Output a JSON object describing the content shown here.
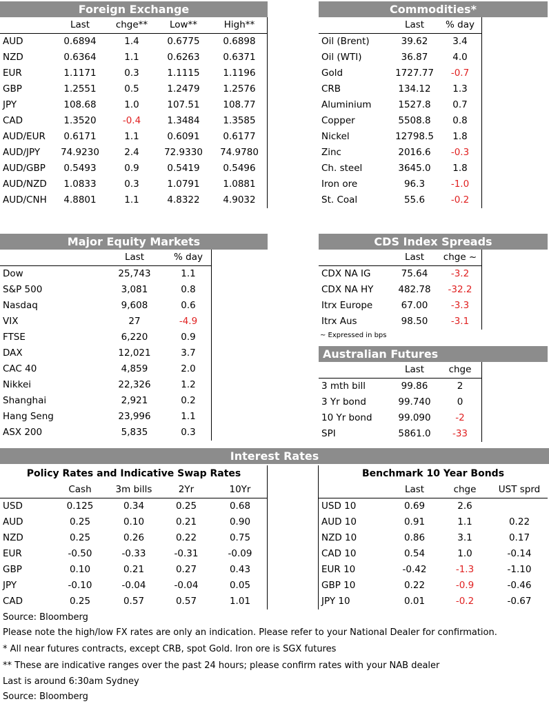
{
  "fx": {
    "title": "Foreign Exchange",
    "headers": [
      "",
      "Last",
      "chge**",
      "Low**",
      "High**"
    ],
    "rows": [
      [
        "AUD",
        "0.6894",
        "1.4",
        "0.6775",
        "0.6898"
      ],
      [
        "NZD",
        "0.6364",
        "1.1",
        "0.6263",
        "0.6371"
      ],
      [
        "EUR",
        "1.1171",
        "0.3",
        "1.1115",
        "1.1196"
      ],
      [
        "GBP",
        "1.2551",
        "0.5",
        "1.2479",
        "1.2576"
      ],
      [
        "JPY",
        "108.68",
        "1.0",
        "107.51",
        "108.77"
      ],
      [
        "CAD",
        "1.3520",
        "-0.4",
        "1.3484",
        "1.3585"
      ],
      [
        "AUD/EUR",
        "0.6171",
        "1.1",
        "0.6091",
        "0.6177"
      ],
      [
        "AUD/JPY",
        "74.9230",
        "2.4",
        "72.9330",
        "74.9780"
      ],
      [
        "AUD/GBP",
        "0.5493",
        "0.9",
        "0.5419",
        "0.5496"
      ],
      [
        "AUD/NZD",
        "1.0833",
        "0.3",
        "1.0791",
        "1.0881"
      ],
      [
        "AUD/CNH",
        "4.8801",
        "1.1",
        "4.8322",
        "4.9032"
      ]
    ]
  },
  "commodities": {
    "title": "Commodities*",
    "headers": [
      "",
      "Last",
      "% day"
    ],
    "rows": [
      [
        "Oil (Brent)",
        "39.62",
        "3.4"
      ],
      [
        "Oil (WTI)",
        "36.87",
        "4.0"
      ],
      [
        "Gold",
        "1727.77",
        "-0.7"
      ],
      [
        "CRB",
        "134.12",
        "1.3"
      ],
      [
        "Aluminium",
        "1527.8",
        "0.7"
      ],
      [
        "Copper",
        "5508.8",
        "0.8"
      ],
      [
        "Nickel",
        "12798.5",
        "1.8"
      ],
      [
        "Zinc",
        "2016.6",
        "-0.3"
      ],
      [
        "Ch. steel",
        "3645.0",
        "1.8"
      ],
      [
        "Iron ore",
        "96.3",
        "-1.0"
      ],
      [
        "St. Coal",
        "55.6",
        "-0.2"
      ]
    ]
  },
  "equities": {
    "title": "Major Equity Markets",
    "headers": [
      "",
      "Last",
      "% day"
    ],
    "rows": [
      [
        "Dow",
        "25,743",
        "1.1"
      ],
      [
        "S&P 500",
        "3,081",
        "0.8"
      ],
      [
        "Nasdaq",
        "9,608",
        "0.6"
      ],
      [
        "VIX",
        "27",
        "-4.9"
      ],
      [
        "FTSE",
        "6,220",
        "0.9"
      ],
      [
        "DAX",
        "12,021",
        "3.7"
      ],
      [
        "CAC 40",
        "4,859",
        "2.0"
      ],
      [
        "Nikkei",
        "22,326",
        "1.2"
      ],
      [
        "Shanghai",
        "2,921",
        "0.2"
      ],
      [
        "Hang Seng",
        "23,996",
        "1.1"
      ],
      [
        "ASX 200",
        "5,835",
        "0.3"
      ]
    ]
  },
  "cds": {
    "title": "CDS Index Spreads",
    "headers": [
      "",
      "Last",
      "chge ~"
    ],
    "rows": [
      [
        "CDX NA IG",
        "75.64",
        "-3.2"
      ],
      [
        "CDX NA HY",
        "482.78",
        "-32.2"
      ],
      [
        "Itrx Europe",
        "67.00",
        "-3.3"
      ],
      [
        "Itrx Aus",
        "98.50",
        "-3.1"
      ]
    ],
    "footnote": "~ Expressed in bps"
  },
  "futures": {
    "title": "Australian Futures",
    "headers": [
      "",
      "Last",
      "chge"
    ],
    "rows": [
      [
        "3 mth bill",
        "99.86",
        "2"
      ],
      [
        "3 Yr bond",
        "99.740",
        "0"
      ],
      [
        "10 Yr bond",
        "99.090",
        "-2"
      ],
      [
        "SPI",
        "5861.0",
        "-33"
      ]
    ]
  },
  "rates": {
    "title": "Interest Rates",
    "policy": {
      "subtitle": "Policy Rates and Indicative Swap Rates",
      "headers": [
        "",
        "Cash",
        "3m bills",
        "2Yr",
        "10Yr"
      ],
      "rows": [
        [
          "USD",
          "0.125",
          "0.34",
          "0.25",
          "0.68"
        ],
        [
          "AUD",
          "0.25",
          "0.10",
          "0.21",
          "0.90"
        ],
        [
          "NZD",
          "0.25",
          "0.26",
          "0.22",
          "0.75"
        ],
        [
          "EUR",
          "-0.50",
          "-0.33",
          "-0.31",
          "-0.09"
        ],
        [
          "GBP",
          "0.10",
          "0.21",
          "0.27",
          "0.43"
        ],
        [
          "JPY",
          "-0.10",
          "-0.04",
          "-0.04",
          "0.05"
        ],
        [
          "CAD",
          "0.25",
          "0.57",
          "0.57",
          "1.01"
        ]
      ]
    },
    "bonds": {
      "subtitle": "Benchmark 10 Year Bonds",
      "headers": [
        "",
        "Last",
        "chge",
        "UST sprd"
      ],
      "rows": [
        [
          "USD 10",
          "0.69",
          "2.6",
          ""
        ],
        [
          "AUD 10",
          "0.91",
          "1.1",
          "0.22"
        ],
        [
          "NZD 10",
          "0.86",
          "3.1",
          "0.17"
        ],
        [
          "CAD 10",
          "0.54",
          "1.0",
          "-0.14"
        ],
        [
          "EUR 10",
          "-0.42",
          "-1.3",
          "-1.10"
        ],
        [
          "GBP 10",
          "0.22",
          "-0.9",
          "-0.46"
        ],
        [
          "JPY 10",
          "0.01",
          "-0.2",
          "-0.67"
        ]
      ]
    }
  },
  "notes": [
    "Source: Bloomberg",
    "Please note the high/low FX rates are only an indication. Please refer to your National Dealer for confirmation.",
    "* All near futures contracts, except CRB, spot Gold.  Iron ore is SGX futures",
    "** These are indicative ranges over the past 24 hours; please confirm rates with your NAB dealer",
    "Last is around 6:30am Sydney",
    "Source: Bloomberg"
  ]
}
